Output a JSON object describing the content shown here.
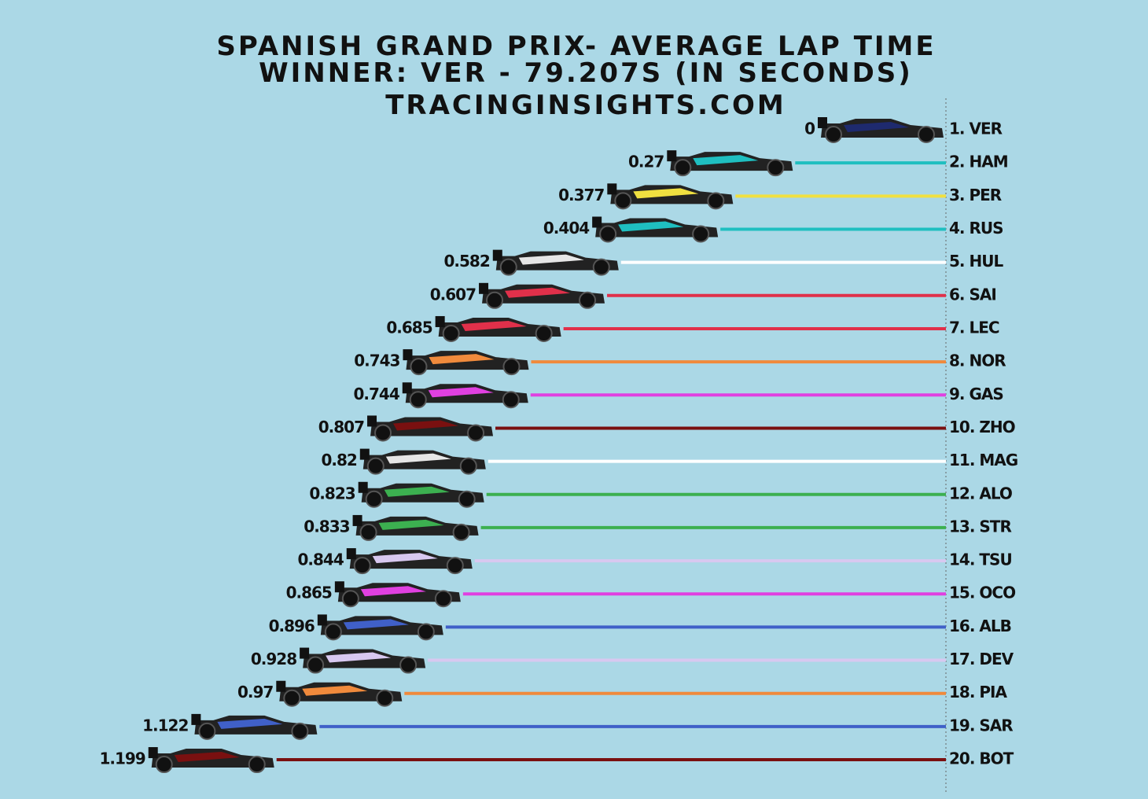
{
  "chart_data": {
    "type": "lollipop",
    "title": "SPANISH GRAND PRIX- AVERAGE LAP TIME",
    "subtitle": "WINNER: VER - 79.207S (IN SECONDS)",
    "source": "TRACINGINSIGHTS.COM",
    "categories": [
      "1. VER",
      "2. HAM",
      "3. PER",
      "4. RUS",
      "5. HUL",
      "6. SAI",
      "7. LEC",
      "8. NOR",
      "9. GAS",
      "10. ZHO",
      "11. MAG",
      "12. ALO",
      "13. STR",
      "14. TSU",
      "15. OCO",
      "16. ALB",
      "17. DEV",
      "18. PIA",
      "19. SAR",
      "20. BOT"
    ],
    "values": [
      0,
      0.27,
      0.377,
      0.404,
      0.582,
      0.607,
      0.685,
      0.743,
      0.744,
      0.807,
      0.82,
      0.823,
      0.833,
      0.844,
      0.865,
      0.896,
      0.928,
      0.97,
      1.122,
      1.199
    ],
    "colors": [
      "#1e2a6e",
      "#1fbfc0",
      "#f0e040",
      "#1fbfc0",
      "#ffffff",
      "#e0304a",
      "#e0304a",
      "#f08a3c",
      "#e040e0",
      "#7a1010",
      "#ffffff",
      "#3cb050",
      "#3cb050",
      "#d8c8f0",
      "#e040e0",
      "#4060c8",
      "#d8c8f0",
      "#f08a3c",
      "#4060c8",
      "#7a1010"
    ],
    "xlim": [
      0,
      1.2
    ]
  }
}
